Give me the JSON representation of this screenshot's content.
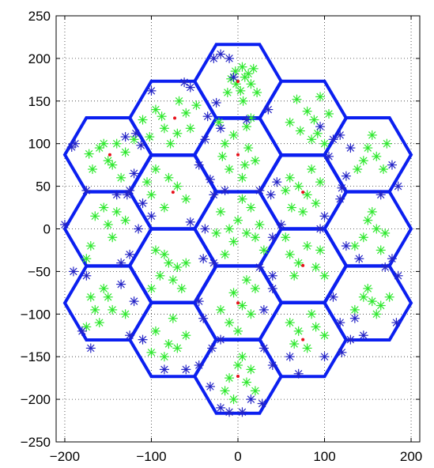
{
  "chart_data": {
    "type": "scatter",
    "title": "",
    "xlabel": "",
    "ylabel": "",
    "xlim": [
      -210,
      210
    ],
    "ylim": [
      -250,
      250
    ],
    "xticks": [
      -200,
      -100,
      0,
      100,
      200
    ],
    "yticks": [
      -250,
      -200,
      -150,
      -100,
      -50,
      0,
      50,
      100,
      150,
      200,
      250
    ],
    "xtick_labels": [
      "−200",
      "−100",
      "0",
      "100",
      "200"
    ],
    "ytick_labels": [
      "−250",
      "−200",
      "−150",
      "−100",
      "−50",
      "0",
      "50",
      "100",
      "150",
      "200",
      "250"
    ],
    "grid": true,
    "grid_style": "dotted",
    "cells": {
      "shape": "hexagon",
      "circumradius": 50,
      "color": "#0b1ff0",
      "centers": [
        [
          0,
          173
        ],
        [
          -75,
          130
        ],
        [
          75,
          130
        ],
        [
          -150,
          87
        ],
        [
          0,
          87
        ],
        [
          150,
          87
        ],
        [
          -75,
          43
        ],
        [
          75,
          43
        ],
        [
          -150,
          0
        ],
        [
          0,
          0
        ],
        [
          150,
          0
        ],
        [
          -75,
          -43
        ],
        [
          75,
          -43
        ],
        [
          -150,
          -87
        ],
        [
          0,
          -87
        ],
        [
          150,
          -87
        ],
        [
          -75,
          -130
        ],
        [
          75,
          -130
        ],
        [
          0,
          -173
        ]
      ]
    },
    "series": [
      {
        "marker": "dot",
        "color": "#e8101a",
        "points": [
          [
            -148,
            87
          ],
          [
            -73,
            130
          ],
          [
            0,
            173
          ],
          [
            0,
            87
          ],
          [
            -75,
            43
          ],
          [
            75,
            43
          ],
          [
            75,
            -43
          ],
          [
            0,
            -87
          ],
          [
            75,
            -130
          ],
          [
            0,
            -173
          ]
        ]
      },
      {
        "marker": "asterisk",
        "color": "#2ee82e",
        "points": [
          [
            5,
            190
          ],
          [
            -3,
            185
          ],
          [
            8,
            178
          ],
          [
            -2,
            170
          ],
          [
            3,
            162
          ],
          [
            12,
            182
          ],
          [
            -8,
            176
          ],
          [
            15,
            170
          ],
          [
            -12,
            160
          ],
          [
            6,
            150
          ],
          [
            22,
            160
          ],
          [
            18,
            188
          ],
          [
            -95,
            140
          ],
          [
            -85,
            118
          ],
          [
            -70,
            112
          ],
          [
            -60,
            136
          ],
          [
            -55,
            118
          ],
          [
            -78,
            100
          ],
          [
            -102,
            108
          ],
          [
            -88,
            132
          ],
          [
            -68,
            150
          ],
          [
            -48,
            145
          ],
          [
            -110,
            128
          ],
          [
            68,
            152
          ],
          [
            80,
            138
          ],
          [
            88,
            128
          ],
          [
            92,
            112
          ],
          [
            100,
            100
          ],
          [
            72,
            115
          ],
          [
            60,
            125
          ],
          [
            105,
            135
          ],
          [
            95,
            155
          ],
          [
            85,
            105
          ],
          [
            -160,
            95
          ],
          [
            -150,
            80
          ],
          [
            -145,
            75
          ],
          [
            -140,
            100
          ],
          [
            -130,
            90
          ],
          [
            -120,
            105
          ],
          [
            -168,
            70
          ],
          [
            -135,
            60
          ],
          [
            -155,
            100
          ],
          [
            -172,
            88
          ],
          [
            -15,
            100
          ],
          [
            -5,
            110
          ],
          [
            10,
            120
          ],
          [
            12,
            95
          ],
          [
            8,
            75
          ],
          [
            -10,
            70
          ],
          [
            20,
            80
          ],
          [
            -18,
            85
          ],
          [
            5,
            60
          ],
          [
            15,
            130
          ],
          [
            -22,
            125
          ],
          [
            150,
            95
          ],
          [
            160,
            85
          ],
          [
            168,
            70
          ],
          [
            145,
            80
          ],
          [
            155,
            110
          ],
          [
            172,
            100
          ],
          [
            138,
            70
          ],
          [
            -95,
            70
          ],
          [
            -80,
            60
          ],
          [
            -70,
            50
          ],
          [
            -100,
            40
          ],
          [
            -60,
            35
          ],
          [
            -85,
            25
          ],
          [
            -105,
            55
          ],
          [
            60,
            60
          ],
          [
            70,
            50
          ],
          [
            80,
            40
          ],
          [
            90,
            30
          ],
          [
            55,
            45
          ],
          [
            75,
            20
          ],
          [
            95,
            55
          ],
          [
            62,
            25
          ],
          [
            85,
            70
          ],
          [
            -165,
            15
          ],
          [
            -150,
            5
          ],
          [
            -145,
            -10
          ],
          [
            -155,
            25
          ],
          [
            -130,
            10
          ],
          [
            -170,
            -20
          ],
          [
            -175,
            -35
          ],
          [
            -140,
            20
          ],
          [
            0,
            10
          ],
          [
            -10,
            0
          ],
          [
            10,
            -5
          ],
          [
            -20,
            20
          ],
          [
            15,
            25
          ],
          [
            -5,
            -15
          ],
          [
            20,
            -10
          ],
          [
            -25,
            -5
          ],
          [
            25,
            5
          ],
          [
            5,
            35
          ],
          [
            -15,
            -30
          ],
          [
            30,
            -25
          ],
          [
            150,
            10
          ],
          [
            160,
            0
          ],
          [
            145,
            -10
          ],
          [
            170,
            -5
          ],
          [
            155,
            20
          ],
          [
            135,
            -20
          ],
          [
            165,
            -25
          ],
          [
            -95,
            -25
          ],
          [
            -80,
            -40
          ],
          [
            -70,
            -45
          ],
          [
            -90,
            -55
          ],
          [
            -75,
            -60
          ],
          [
            -60,
            -40
          ],
          [
            -100,
            -70
          ],
          [
            -65,
            -70
          ],
          [
            -85,
            -30
          ],
          [
            60,
            -30
          ],
          [
            70,
            -40
          ],
          [
            80,
            -20
          ],
          [
            90,
            -45
          ],
          [
            65,
            -55
          ],
          [
            55,
            -10
          ],
          [
            95,
            -25
          ],
          [
            100,
            -55
          ],
          [
            -165,
            -95
          ],
          [
            -160,
            -110
          ],
          [
            -150,
            -80
          ],
          [
            -145,
            -95
          ],
          [
            -130,
            -100
          ],
          [
            -175,
            -115
          ],
          [
            -155,
            -70
          ],
          [
            -170,
            -80
          ],
          [
            -5,
            -75
          ],
          [
            5,
            -90
          ],
          [
            15,
            -100
          ],
          [
            -10,
            -110
          ],
          [
            20,
            -70
          ],
          [
            0,
            -120
          ],
          [
            -20,
            -95
          ],
          [
            10,
            -60
          ],
          [
            145,
            -80
          ],
          [
            155,
            -85
          ],
          [
            165,
            -90
          ],
          [
            150,
            -70
          ],
          [
            175,
            -80
          ],
          [
            135,
            -95
          ],
          [
            160,
            -100
          ],
          [
            -95,
            -120
          ],
          [
            -80,
            -135
          ],
          [
            -70,
            -140
          ],
          [
            -85,
            -150
          ],
          [
            -60,
            -125
          ],
          [
            -100,
            -145
          ],
          [
            -75,
            -105
          ],
          [
            60,
            -110
          ],
          [
            70,
            -120
          ],
          [
            80,
            -140
          ],
          [
            90,
            -115
          ],
          [
            65,
            -135
          ],
          [
            100,
            -125
          ],
          [
            85,
            -100
          ],
          [
            0,
            -160
          ],
          [
            -10,
            -175
          ],
          [
            10,
            -180
          ],
          [
            -15,
            -190
          ],
          [
            15,
            -165
          ],
          [
            -5,
            -200
          ],
          [
            5,
            -150
          ],
          [
            20,
            -190
          ]
        ]
      },
      {
        "marker": "asterisk",
        "color": "#2424c6",
        "points": [
          [
            -28,
            200
          ],
          [
            -20,
            205
          ],
          [
            -10,
            200
          ],
          [
            -5,
            178
          ],
          [
            35,
            140
          ],
          [
            10,
            128
          ],
          [
            -35,
            132
          ],
          [
            -25,
            148
          ],
          [
            -62,
            172
          ],
          [
            -55,
            166
          ],
          [
            -100,
            162
          ],
          [
            -118,
            112
          ],
          [
            -112,
            98
          ],
          [
            -130,
            108
          ],
          [
            -38,
            105
          ],
          [
            -20,
            118
          ],
          [
            95,
            120
          ],
          [
            110,
            105
          ],
          [
            105,
            85
          ],
          [
            130,
            95
          ],
          [
            118,
            110
          ],
          [
            -188,
            100
          ],
          [
            -192,
            96
          ],
          [
            -120,
            65
          ],
          [
            -128,
            40
          ],
          [
            -140,
            40
          ],
          [
            -175,
            45
          ],
          [
            -45,
            75
          ],
          [
            -32,
            58
          ],
          [
            -28,
            40
          ],
          [
            -15,
            45
          ],
          [
            25,
            45
          ],
          [
            38,
            40
          ],
          [
            45,
            55
          ],
          [
            120,
            48
          ],
          [
            125,
            62
          ],
          [
            178,
            75
          ],
          [
            185,
            50
          ],
          [
            165,
            40
          ],
          [
            -125,
            45
          ],
          [
            -110,
            30
          ],
          [
            -100,
            15
          ],
          [
            -115,
            0
          ],
          [
            -55,
            8
          ],
          [
            -38,
            0
          ],
          [
            50,
            5
          ],
          [
            40,
            -10
          ],
          [
            95,
            0
          ],
          [
            100,
            15
          ],
          [
            118,
            35
          ],
          [
            -200,
            5
          ],
          [
            -125,
            -30
          ],
          [
            -135,
            -40
          ],
          [
            -190,
            -50
          ],
          [
            -175,
            -55
          ],
          [
            -40,
            -35
          ],
          [
            -28,
            -40
          ],
          [
            25,
            -45
          ],
          [
            40,
            -55
          ],
          [
            125,
            -20
          ],
          [
            140,
            -35
          ],
          [
            170,
            -45
          ],
          [
            185,
            -55
          ],
          [
            178,
            -35
          ],
          [
            -135,
            -65
          ],
          [
            -120,
            -85
          ],
          [
            -110,
            -130
          ],
          [
            -125,
            -125
          ],
          [
            -170,
            -140
          ],
          [
            -180,
            -120
          ],
          [
            -45,
            -85
          ],
          [
            -40,
            -105
          ],
          [
            -20,
            -130
          ],
          [
            30,
            -95
          ],
          [
            40,
            -70
          ],
          [
            110,
            -80
          ],
          [
            118,
            -110
          ],
          [
            130,
            -130
          ],
          [
            145,
            -125
          ],
          [
            135,
            -105
          ],
          [
            183,
            -110
          ],
          [
            -85,
            -165
          ],
          [
            -60,
            -165
          ],
          [
            -45,
            -160
          ],
          [
            -30,
            -140
          ],
          [
            30,
            -140
          ],
          [
            40,
            -160
          ],
          [
            60,
            -150
          ],
          [
            70,
            -170
          ],
          [
            100,
            -150
          ],
          [
            120,
            -145
          ],
          [
            -20,
            -210
          ],
          [
            -10,
            -215
          ],
          [
            5,
            -215
          ],
          [
            15,
            -200
          ],
          [
            28,
            -205
          ],
          [
            -32,
            -185
          ]
        ]
      }
    ]
  }
}
